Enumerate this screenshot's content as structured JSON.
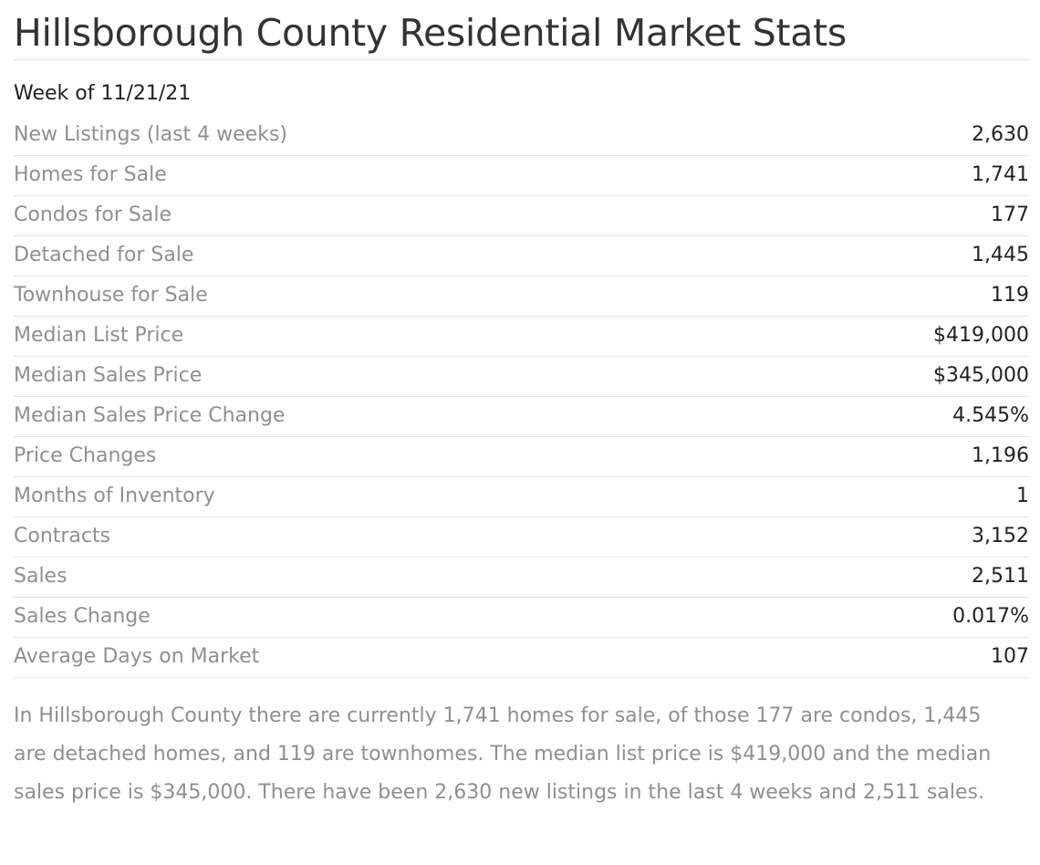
{
  "page": {
    "title": "Hillsborough County Residential Market Stats",
    "week": "Week of 11/21/21"
  },
  "stats": {
    "rows": [
      {
        "label": "New Listings (last 4 weeks)",
        "value": "2,630"
      },
      {
        "label": "Homes for Sale",
        "value": "1,741"
      },
      {
        "label": "Condos for Sale",
        "value": "177"
      },
      {
        "label": "Detached for Sale",
        "value": "1,445"
      },
      {
        "label": "Townhouse for Sale",
        "value": "119"
      },
      {
        "label": "Median List Price",
        "value": "$419,000"
      },
      {
        "label": "Median Sales Price",
        "value": "$345,000"
      },
      {
        "label": "Median Sales Price Change",
        "value": "4.545%"
      },
      {
        "label": "Price Changes",
        "value": "1,196"
      },
      {
        "label": "Months of Inventory",
        "value": "1"
      },
      {
        "label": "Contracts",
        "value": "3,152"
      },
      {
        "label": "Sales",
        "value": "2,511"
      },
      {
        "label": "Sales Change",
        "value": "0.017%"
      },
      {
        "label": "Average Days on Market",
        "value": "107"
      }
    ]
  },
  "summary": {
    "text": "In Hillsborough County there are currently 1,741 homes for sale, of those 177 are condos, 1,445 are detached homes, and 119 are townhomes. The median list price is $419,000 and the median sales price is $345,000. There have been 2,630 new listings in the last 4 weeks and 2,511 sales."
  },
  "colors": {
    "title": "#333333",
    "label": "#8f8f8f",
    "value": "#222222",
    "rule": "#e6e6e6"
  }
}
